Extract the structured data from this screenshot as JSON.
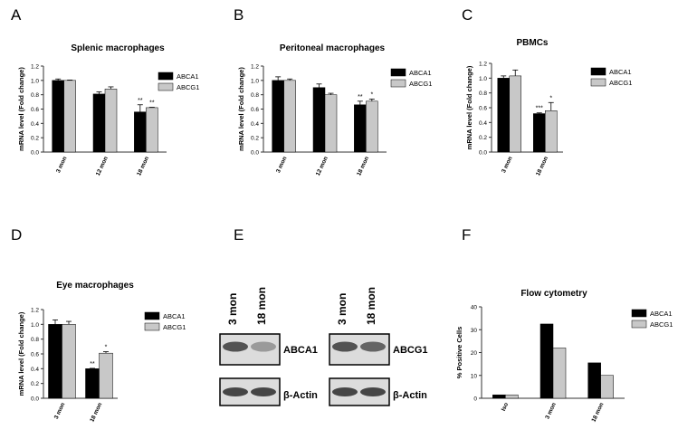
{
  "panel_letters": [
    "A",
    "B",
    "C",
    "D",
    "E",
    "F"
  ],
  "colors": {
    "abca1": "#000000",
    "abcg1": "#c8c8c8",
    "axis": "#333333"
  },
  "chart_data": [
    {
      "panel": "A",
      "type": "bar",
      "title": "Splenic macrophages",
      "ylabel": "mRNA level (Fold change)",
      "xlabel": "",
      "ylim": [
        0,
        1.2
      ],
      "yticks": [
        "0.0",
        "0.2",
        "0.4",
        "0.6",
        "0.8",
        "1.0",
        "1.2"
      ],
      "categories": [
        "3 mon",
        "12 mon",
        "18 mon"
      ],
      "series": [
        {
          "name": "ABCA1",
          "values": [
            1.0,
            0.81,
            0.56
          ],
          "errors": [
            0.02,
            0.03,
            0.1
          ],
          "sig": [
            "",
            "",
            "**"
          ]
        },
        {
          "name": "ABCG1",
          "values": [
            1.0,
            0.88,
            0.62
          ],
          "errors": [
            0.005,
            0.03,
            0.005
          ],
          "sig": [
            "",
            "",
            "**"
          ]
        }
      ],
      "legend": "right"
    },
    {
      "panel": "B",
      "type": "bar",
      "title": "Peritoneal macrophages",
      "ylabel": "mRNA level (Fold change)",
      "xlabel": "",
      "ylim": [
        0,
        1.2
      ],
      "yticks": [
        "0.0",
        "0.2",
        "0.4",
        "0.6",
        "0.8",
        "1.0",
        "1.2"
      ],
      "categories": [
        "3 mon",
        "12 mon",
        "18 mon"
      ],
      "series": [
        {
          "name": "ABCA1",
          "values": [
            1.0,
            0.9,
            0.66
          ],
          "errors": [
            0.05,
            0.05,
            0.05
          ],
          "sig": [
            "",
            "",
            "**"
          ]
        },
        {
          "name": "ABCG1",
          "values": [
            1.0,
            0.8,
            0.71
          ],
          "errors": [
            0.02,
            0.02,
            0.03
          ],
          "sig": [
            "",
            "",
            "*"
          ]
        }
      ],
      "legend": "right"
    },
    {
      "panel": "C",
      "type": "bar",
      "title": "PBMCs",
      "ylabel": "mRNA level (Fold change)",
      "xlabel": "",
      "ylim": [
        0,
        1.2
      ],
      "yticks": [
        "0.0",
        "0.2",
        "0.4",
        "0.6",
        "0.8",
        "1.0",
        "1.2"
      ],
      "categories": [
        "3 mon",
        "18 mon"
      ],
      "series": [
        {
          "name": "ABCA1",
          "values": [
            1.0,
            0.52
          ],
          "errors": [
            0.03,
            0.01
          ],
          "sig": [
            "",
            "***"
          ]
        },
        {
          "name": "ABCG1",
          "values": [
            1.03,
            0.56
          ],
          "errors": [
            0.08,
            0.11
          ],
          "sig": [
            "",
            "*"
          ]
        }
      ],
      "legend": "right"
    },
    {
      "panel": "D",
      "type": "bar",
      "title": "Eye macrophages",
      "ylabel": "mRNA level (Fold change)",
      "xlabel": "",
      "ylim": [
        0,
        1.2
      ],
      "yticks": [
        "0.0",
        "0.2",
        "0.4",
        "0.6",
        "0.8",
        "1.0",
        "1.2"
      ],
      "categories": [
        "3 mon",
        "18 mon"
      ],
      "series": [
        {
          "name": "ABCA1",
          "values": [
            1.0,
            0.4
          ],
          "errors": [
            0.06,
            0.005
          ],
          "sig": [
            "",
            "**"
          ]
        },
        {
          "name": "ABCG1",
          "values": [
            1.0,
            0.61
          ],
          "errors": [
            0.04,
            0.02
          ],
          "sig": [
            "",
            "*"
          ]
        }
      ],
      "legend": "right"
    },
    {
      "panel": "F",
      "type": "bar",
      "title": "Flow cytometry",
      "ylabel": "% Positive Cells",
      "xlabel": "",
      "ylim": [
        0,
        40
      ],
      "yticks": [
        "0",
        "10",
        "20",
        "30",
        "40"
      ],
      "categories": [
        "Iso",
        "3 mon",
        "18 mon"
      ],
      "series": [
        {
          "name": "ABCA1",
          "values": [
            1.5,
            32.5,
            15.5
          ],
          "errors": [],
          "sig": [
            "",
            "",
            ""
          ]
        },
        {
          "name": "ABCG1",
          "values": [
            1.5,
            22,
            10
          ],
          "errors": [],
          "sig": [
            "",
            "",
            ""
          ]
        }
      ],
      "legend": "right"
    }
  ],
  "western_blot": {
    "panel": "E",
    "lanes": [
      "3 mon",
      "18 mon"
    ],
    "blots": [
      {
        "target": "ABCA1",
        "band_intensity": [
          0.85,
          0.45
        ]
      },
      {
        "target": "ABCG1",
        "band_intensity": [
          0.85,
          0.75
        ]
      }
    ],
    "loading_control": "β-Actin"
  }
}
